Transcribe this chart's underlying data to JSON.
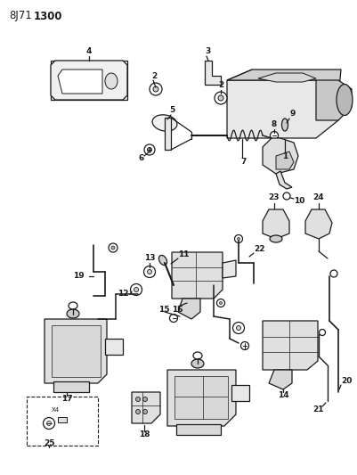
{
  "background_color": "#ffffff",
  "text_color": "#1a1a1a",
  "figsize": [
    4.01,
    5.33
  ],
  "dpi": 100,
  "title1": "8J71",
  "title2": "1300",
  "lw": 0.9
}
